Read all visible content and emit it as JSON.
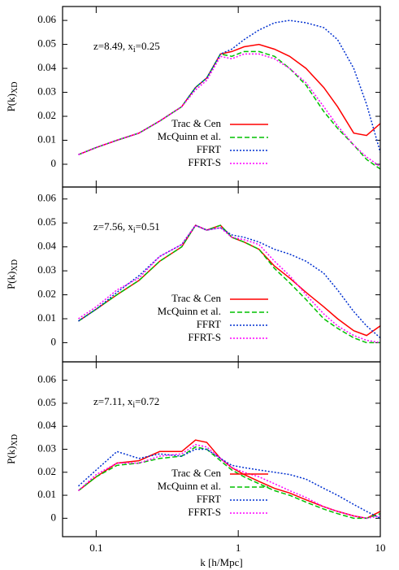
{
  "chart_data": [
    {
      "type": "line",
      "annotation": [
        "z=8.49, x",
        "i",
        "=0.25"
      ],
      "ylabel": [
        "P(k)",
        "XD"
      ],
      "x": [
        0.075,
        0.1,
        0.14,
        0.2,
        0.28,
        0.4,
        0.5,
        0.6,
        0.75,
        0.9,
        1.1,
        1.4,
        1.8,
        2.3,
        3,
        4,
        5,
        6.5,
        8,
        10
      ],
      "xlim": [
        0.058,
        10
      ],
      "xticks": [
        0.1,
        1,
        10
      ],
      "xscale": "log",
      "ylim": [
        -0.0095,
        0.0658
      ],
      "yticks": [
        0,
        0.01,
        0.02,
        0.03,
        0.04,
        0.05,
        0.06
      ],
      "legend": "lower right",
      "series": [
        {
          "name": "Trac & Cen",
          "color": "#ff0000",
          "linestyle": "solid",
          "values": [
            0.004,
            0.007,
            0.01,
            0.013,
            0.018,
            0.024,
            0.032,
            0.036,
            0.046,
            0.047,
            0.049,
            0.05,
            0.048,
            0.045,
            0.04,
            0.032,
            0.024,
            0.013,
            0.012,
            0.017
          ]
        },
        {
          "name": "McQuinn et al.",
          "color": "#00c000",
          "linestyle": "dashed",
          "values": [
            0.004,
            0.007,
            0.01,
            0.013,
            0.018,
            0.024,
            0.032,
            0.036,
            0.046,
            0.045,
            0.047,
            0.047,
            0.045,
            0.04,
            0.033,
            0.022,
            0.015,
            0.008,
            0.002,
            -0.002
          ]
        },
        {
          "name": "FFRT",
          "color": "#0030d0",
          "linestyle": "dotted",
          "values": [
            0.004,
            0.007,
            0.01,
            0.013,
            0.018,
            0.024,
            0.032,
            0.036,
            0.046,
            0.048,
            0.052,
            0.056,
            0.059,
            0.06,
            0.059,
            0.057,
            0.052,
            0.04,
            0.025,
            0.005
          ]
        },
        {
          "name": "FFRT-S",
          "color": "#ff00ff",
          "linestyle": "dotted",
          "values": [
            0.004,
            0.007,
            0.01,
            0.013,
            0.018,
            0.024,
            0.031,
            0.035,
            0.045,
            0.044,
            0.046,
            0.046,
            0.044,
            0.04,
            0.034,
            0.024,
            0.016,
            0.008,
            0.003,
            -0.001
          ]
        }
      ]
    },
    {
      "type": "line",
      "annotation": [
        "z=7.56, x",
        "i",
        "=0.51"
      ],
      "ylabel": [
        "P(k)",
        "XD"
      ],
      "x": [
        0.075,
        0.1,
        0.14,
        0.2,
        0.28,
        0.4,
        0.5,
        0.6,
        0.75,
        0.9,
        1.1,
        1.4,
        1.8,
        2.3,
        3,
        4,
        5,
        6.5,
        8,
        10
      ],
      "xlim": [
        0.058,
        10
      ],
      "xticks": [
        0.1,
        1,
        10
      ],
      "xscale": "log",
      "ylim": [
        -0.008,
        0.065
      ],
      "yticks": [
        0,
        0.01,
        0.02,
        0.03,
        0.04,
        0.05,
        0.06
      ],
      "legend": "lower right",
      "series": [
        {
          "name": "Trac & Cen",
          "color": "#ff0000",
          "linestyle": "solid",
          "values": [
            0.009,
            0.014,
            0.02,
            0.026,
            0.034,
            0.04,
            0.049,
            0.047,
            0.049,
            0.044,
            0.042,
            0.039,
            0.032,
            0.027,
            0.021,
            0.015,
            0.01,
            0.005,
            0.003,
            0.007
          ]
        },
        {
          "name": "McQuinn et al.",
          "color": "#00c000",
          "linestyle": "dashed",
          "values": [
            0.009,
            0.014,
            0.02,
            0.026,
            0.034,
            0.04,
            0.049,
            0.047,
            0.049,
            0.044,
            0.042,
            0.039,
            0.031,
            0.025,
            0.018,
            0.01,
            0.006,
            0.002,
            0.0,
            0.0
          ]
        },
        {
          "name": "FFRT",
          "color": "#0030d0",
          "linestyle": "dotted",
          "values": [
            0.009,
            0.014,
            0.021,
            0.028,
            0.036,
            0.041,
            0.049,
            0.047,
            0.048,
            0.045,
            0.044,
            0.042,
            0.039,
            0.037,
            0.034,
            0.029,
            0.022,
            0.013,
            0.007,
            0.002
          ]
        },
        {
          "name": "FFRT-S",
          "color": "#ff00ff",
          "linestyle": "dotted",
          "values": [
            0.01,
            0.015,
            0.022,
            0.027,
            0.036,
            0.041,
            0.049,
            0.047,
            0.048,
            0.044,
            0.043,
            0.041,
            0.034,
            0.028,
            0.02,
            0.012,
            0.007,
            0.003,
            0.001,
            0.0
          ]
        }
      ]
    },
    {
      "type": "line",
      "annotation": [
        "z=7.11, x",
        "i",
        "=0.72"
      ],
      "ylabel": [
        "P(k)",
        "XD"
      ],
      "xlabel": "k [h/Mpc]",
      "x": [
        0.075,
        0.1,
        0.14,
        0.2,
        0.28,
        0.4,
        0.5,
        0.6,
        0.75,
        0.9,
        1.1,
        1.4,
        1.8,
        2.3,
        3,
        4,
        5,
        6.5,
        8,
        10
      ],
      "xlim": [
        0.058,
        10
      ],
      "xticks": [
        0.1,
        1,
        10
      ],
      "xscale": "log",
      "ylim": [
        -0.008,
        0.068
      ],
      "yticks": [
        0,
        0.01,
        0.02,
        0.03,
        0.04,
        0.05,
        0.06
      ],
      "legend": "lower right",
      "series": [
        {
          "name": "Trac & Cen",
          "color": "#ff0000",
          "linestyle": "solid",
          "values": [
            0.012,
            0.018,
            0.024,
            0.025,
            0.029,
            0.029,
            0.034,
            0.033,
            0.026,
            0.022,
            0.019,
            0.016,
            0.013,
            0.011,
            0.008,
            0.005,
            0.003,
            0.001,
            0.0,
            0.003
          ]
        },
        {
          "name": "McQuinn et al.",
          "color": "#00c000",
          "linestyle": "dashed",
          "values": [
            0.012,
            0.018,
            0.023,
            0.024,
            0.026,
            0.027,
            0.031,
            0.03,
            0.025,
            0.021,
            0.018,
            0.015,
            0.012,
            0.01,
            0.007,
            0.004,
            0.002,
            0.0,
            0.0,
            0.002
          ]
        },
        {
          "name": "FFRT",
          "color": "#0030d0",
          "linestyle": "dotted",
          "values": [
            0.014,
            0.021,
            0.029,
            0.026,
            0.028,
            0.027,
            0.03,
            0.03,
            0.026,
            0.023,
            0.022,
            0.021,
            0.02,
            0.019,
            0.017,
            0.013,
            0.01,
            0.006,
            0.003,
            0.0
          ]
        },
        {
          "name": "FFRT-S",
          "color": "#ff00ff",
          "linestyle": "dotted",
          "values": [
            0.012,
            0.019,
            0.024,
            0.024,
            0.027,
            0.028,
            0.032,
            0.031,
            0.026,
            0.022,
            0.02,
            0.018,
            0.015,
            0.012,
            0.009,
            0.005,
            0.003,
            0.001,
            0.0,
            0.001
          ]
        }
      ]
    }
  ]
}
